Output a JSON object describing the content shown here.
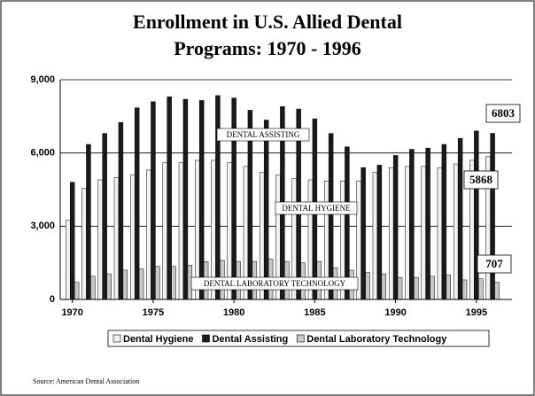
{
  "chart_data": {
    "type": "bar",
    "title": "Enrollment in U.S. Allied Dental",
    "subtitle": "Programs:  1970 - 1996",
    "x": [
      1970,
      1971,
      1972,
      1973,
      1974,
      1975,
      1976,
      1977,
      1978,
      1979,
      1980,
      1981,
      1982,
      1983,
      1984,
      1985,
      1986,
      1987,
      1988,
      1989,
      1990,
      1991,
      1992,
      1993,
      1994,
      1995,
      1996
    ],
    "series": [
      {
        "name": "Dental Hygiene",
        "color": "#f2f2f2",
        "values": [
          3250,
          4550,
          4900,
          5000,
          5100,
          5300,
          5600,
          5600,
          5700,
          5700,
          5600,
          5450,
          5200,
          5100,
          4950,
          4900,
          4850,
          4850,
          4850,
          5200,
          5400,
          5450,
          5450,
          5400,
          5550,
          5700,
          5868
        ]
      },
      {
        "name": "Dental Assisting",
        "color": "#1a1a1a",
        "values": [
          4800,
          6350,
          6800,
          7250,
          7850,
          8100,
          8300,
          8200,
          8150,
          8350,
          8250,
          7750,
          7350,
          7900,
          7800,
          7400,
          6800,
          6250,
          5400,
          5500,
          5900,
          6150,
          6200,
          6350,
          6600,
          6900,
          6803
        ]
      },
      {
        "name": "Dental Laboratory Technology",
        "color": "#c8c8c8",
        "values": [
          700,
          950,
          1050,
          1200,
          1250,
          1350,
          1350,
          1400,
          1550,
          1600,
          1550,
          1550,
          1650,
          1550,
          1500,
          1550,
          1300,
          1200,
          1100,
          1050,
          900,
          900,
          950,
          1000,
          800,
          850,
          707
        ]
      }
    ],
    "xlim": [
      1969.25,
      1997.2
    ],
    "xticks": [
      1970,
      1975,
      1980,
      1985,
      1990,
      1995
    ],
    "ylim": [
      0,
      9000
    ],
    "yticks": [
      0,
      {
        "value": 3000,
        "label": "3,000"
      },
      {
        "value": 6000,
        "label": "6,000"
      },
      {
        "value": 9000,
        "label": "9,000"
      }
    ],
    "grid": true,
    "annotations": [
      "DENTAL ASSISTING",
      "DENTAL HYGIENE",
      "DENTAL LABORATORY TECHNOLOGY"
    ],
    "source": "Source:  American Dental Association"
  }
}
